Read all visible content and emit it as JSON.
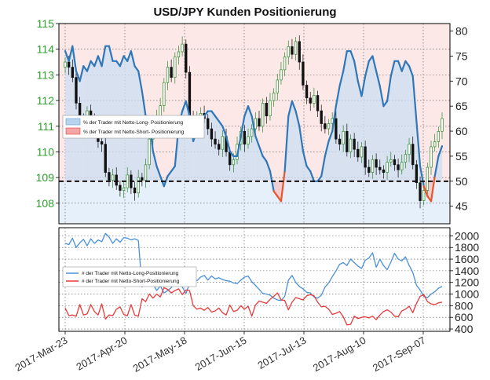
{
  "chart_data": {
    "title": "USD/JPY Kunden Positionierung",
    "x_tick_labels": [
      "2017-Mar-23",
      "2017-Apr-20",
      "2017-May-18",
      "2017-Jun-15",
      "2017-Jul-13",
      "2017-Aug-10",
      "2017-Sep-07"
    ],
    "panels": [
      {
        "type": "candlestick+line",
        "left_axis": {
          "label": "",
          "ylim": [
            107.2,
            115
          ],
          "ticks": [
            "108",
            "109",
            "110",
            "111",
            "112",
            "113",
            "114",
            "115"
          ],
          "color": "#2ca02c"
        },
        "right_axis": {
          "label": "",
          "ylim": [
            41.5,
            81.5
          ],
          "ticks": [
            "45",
            "50",
            "55",
            "60",
            "65",
            "70",
            "75",
            "80"
          ],
          "color": "#222222"
        },
        "reference_line": {
          "value": 50,
          "axis": "right",
          "style": "dashed"
        },
        "legend": {
          "position": "center-left",
          "entries": [
            {
              "name": "% der Trader mit Netto-Long- Positionierung",
              "color": "#b8d4ee"
            },
            {
              "name": "% der Trader mit Netto-Short- Positionierung",
              "color": "#f4a6a6"
            }
          ]
        },
        "price_series": {
          "name": "USD/JPY",
          "close": [
            113.5,
            113.3,
            112.9,
            111.9,
            111.2,
            110.9,
            111.6,
            111.2,
            110.7,
            110.4,
            110.3,
            109.2,
            108.9,
            109.1,
            108.7,
            108.5,
            108.6,
            109.1,
            108.6,
            108.4,
            109.0,
            108.9,
            109.5,
            110.5,
            111.2,
            111.4,
            111.8,
            112.7,
            113.3,
            112.9,
            113.7,
            113.9,
            114.2,
            113.1,
            111.3,
            111.1,
            111.4,
            111.5,
            111.3,
            110.9,
            110.5,
            110.3,
            110.1,
            110.6,
            110.0,
            109.5,
            109.7,
            110.3,
            110.8,
            110.3,
            110.6,
            110.9,
            111.3,
            111.0,
            111.9,
            111.4,
            112.0,
            112.3,
            112.8,
            113.2,
            113.7,
            114.1,
            113.8,
            114.3,
            113.5,
            112.6,
            112.1,
            111.9,
            112.2,
            111.6,
            111.1,
            110.9,
            111.1,
            111.3,
            110.5,
            110.3,
            110.8,
            110.0,
            110.5,
            110.1,
            109.8,
            110.2,
            109.4,
            109.2,
            109.7,
            109.4,
            109.3,
            109.2,
            109.6,
            109.7,
            109.5,
            109.3,
            109.6,
            109.9,
            110.3,
            109.5,
            108.8,
            108.1,
            108.5,
            109.4,
            110.2,
            110.4,
            110.8,
            111.3
          ]
        },
        "long_pct_series": {
          "name": "% der Trader mit Netto-Long- Positionierung",
          "values": [
            76,
            74,
            77,
            72,
            70,
            73,
            72,
            74,
            73,
            75,
            73,
            77,
            77,
            74,
            74,
            73,
            75,
            74,
            76,
            73,
            72,
            68,
            63,
            62,
            56,
            53,
            51,
            49,
            51,
            52,
            53,
            61,
            64,
            66,
            63,
            58,
            60,
            62,
            63,
            64,
            64,
            63,
            62,
            61,
            59,
            56,
            55,
            55,
            59,
            63,
            65,
            63,
            59,
            57,
            55,
            54,
            52,
            48,
            47,
            46,
            52,
            63,
            66,
            64,
            61,
            56,
            53,
            52,
            50,
            50,
            51,
            55,
            58,
            60,
            65,
            69,
            72,
            76,
            76,
            74,
            70,
            67,
            71,
            74,
            75,
            72,
            69,
            65,
            66,
            71,
            74,
            74,
            72,
            74,
            73,
            71,
            62,
            53,
            49,
            47,
            46,
            51,
            55,
            57
          ]
        }
      },
      {
        "type": "line",
        "right_axis": {
          "label": "",
          "ylim": [
            360,
            2140
          ],
          "ticks": [
            "400",
            "600",
            "800",
            "1000",
            "1200",
            "1400",
            "1600",
            "1800",
            "2000"
          ],
          "color": "#222222"
        },
        "legend": {
          "position": "center-left",
          "entries": [
            {
              "name": "# der Trader mit Netto-Long-Positionierung",
              "color": "#4a90d9"
            },
            {
              "name": "# der Trader mit Netto-Short-Positionierung",
              "color": "#e8393b"
            }
          ]
        },
        "series": [
          {
            "name": "# der Trader mit Netto-Long-Positionierung",
            "color": "#4a90d9",
            "values": [
              1870,
              1850,
              1960,
              1800,
              1880,
              1940,
              1830,
              1950,
              1870,
              1930,
              1900,
              2040,
              1980,
              1870,
              1950,
              1890,
              1970,
              1960,
              1930,
              1950,
              1920,
              1120,
              1380,
              1200,
              1180,
              1060,
              1140,
              1020,
              1060,
              1110,
              1210,
              1240,
              1120,
              1010,
              1180,
              1260,
              1230,
              1290,
              1320,
              1240,
              1310,
              1260,
              1280,
              1250,
              1230,
              1220,
              1190,
              1180,
              1240,
              1290,
              1310,
              1210,
              1150,
              1080,
              1010,
              1000,
              980,
              930,
              900,
              890,
              960,
              1240,
              1320,
              1200,
              1130,
              1090,
              1030,
              1020,
              950,
              930,
              980,
              1120,
              1190,
              1300,
              1400,
              1510,
              1540,
              1490,
              1600,
              1540,
              1480,
              1440,
              1580,
              1620,
              1710,
              1460,
              1600,
              1490,
              1420,
              1550,
              1700,
              1600,
              1570,
              1640,
              1490,
              1370,
              1150,
              1070,
              960,
              940,
              1000,
              1040,
              1100,
              1130
            ]
          },
          {
            "name": "# der Trader mit Netto-Short-Positionierung",
            "color": "#e8393b",
            "values": [
              760,
              630,
              640,
              620,
              820,
              640,
              660,
              820,
              700,
              640,
              830,
              570,
              640,
              630,
              740,
              780,
              650,
              630,
              820,
              640,
              620,
              920,
              870,
              1000,
              930,
              1000,
              950,
              1110,
              1080,
              1020,
              1060,
              1090,
              990,
              1070,
              1060,
              800,
              740,
              760,
              720,
              770,
              690,
              710,
              760,
              680,
              640,
              810,
              700,
              720,
              800,
              740,
              790,
              620,
              810,
              880,
              860,
              840,
              910,
              960,
              1020,
              900,
              890,
              730,
              860,
              940,
              920,
              900,
              970,
              990,
              970,
              860,
              780,
              790,
              740,
              650,
              670,
              700,
              610,
              470,
              480,
              620,
              580,
              600,
              610,
              590,
              620,
              560,
              640,
              700,
              730,
              690,
              620,
              610,
              710,
              740,
              790,
              680,
              840,
              960,
              990,
              870,
              830,
              820,
              850,
              860
            ]
          }
        ]
      }
    ]
  }
}
